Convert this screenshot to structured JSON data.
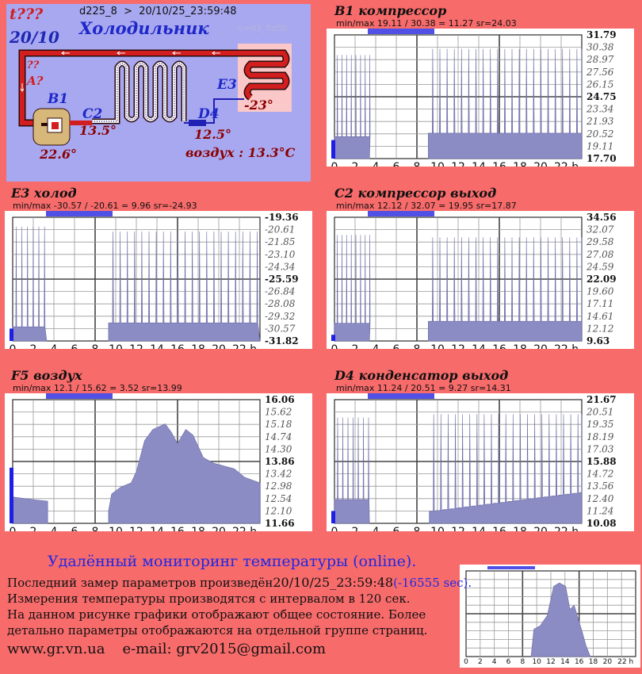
{
  "header": {
    "alarm_top": "t???",
    "date_short": "20/10",
    "device_line": "d225_8  >  20/10/25_23:59:48",
    "version": "v=d3_fig5b",
    "title": "Холодильник"
  },
  "diagram": {
    "question_marks": "??",
    "label_A": "A?",
    "sensors": {
      "B1": {
        "name": "B1",
        "value": "22.6°"
      },
      "C2": {
        "name": "C2",
        "value": "13.5°"
      },
      "D4": {
        "name": "D4",
        "value": "12.5°"
      },
      "E3": {
        "name": "E3",
        "value": "-23°"
      }
    },
    "air": "воздух : 13.3°C"
  },
  "colors": {
    "background": "#f86b6b",
    "diagram_bg": "#a8a8f0",
    "fill": "#8c8cc4",
    "bar": "#5050e6",
    "pipe_hot": "#d21e1e",
    "pipe_cold": "#2020b4"
  },
  "chart_data": [
    {
      "id": "b1",
      "type": "area",
      "title": "B1 компрессор",
      "stats": "min/max  19.11 / 30.38 = 11.27     sr=24.03",
      "yticks": [
        "31.79",
        "30.38",
        "28.97",
        "27.56",
        "26.15",
        "24.75",
        "23.34",
        "21.93",
        "20.52",
        "19.11",
        "17.70"
      ],
      "ylim": [
        17.7,
        31.79
      ],
      "bold_ticks": [
        0,
        5,
        10
      ],
      "x_ticks": [
        "0",
        "2",
        "4",
        "6",
        "8",
        "10",
        "12",
        "14",
        "16",
        "18",
        "20",
        "22 h"
      ],
      "off_segment": [
        3.4,
        9.1
      ],
      "segments": [
        {
          "from": 0,
          "to": 3.4,
          "base": 20.2,
          "peak": 29.5,
          "spike_every": 0.45
        },
        {
          "from": 9.1,
          "to": 24,
          "base": 20.6,
          "peak": 30.2,
          "spike_every": 0.7
        }
      ],
      "indicator_value": 0.15
    },
    {
      "id": "e3",
      "type": "area",
      "title": "E3 холод",
      "stats": "min/max  -30.57 / -20.61 = 9.96     sr=-24.93",
      "yticks": [
        "-19.36",
        "-20.61",
        "-21.85",
        "-23.10",
        "-24.34",
        "-25.59",
        "-26.84",
        "-28.08",
        "-29.32",
        "-30.57",
        "-31.82"
      ],
      "ylim": [
        -31.82,
        -19.36
      ],
      "bold_ticks": [
        0,
        5,
        10
      ],
      "x_ticks": [
        "0",
        "2",
        "4",
        "6",
        "8",
        "10",
        "12",
        "14",
        "16",
        "18",
        "20",
        "22 h"
      ],
      "off_segment": [
        3.3,
        9.3
      ],
      "segments": [
        {
          "from": 0,
          "to": 3.3,
          "base": -30.4,
          "peak": -20.3,
          "spike_every": 0.55
        },
        {
          "from": 9.3,
          "to": 24,
          "base": -30.0,
          "peak": -20.8,
          "spike_every": 0.7
        }
      ],
      "indicator_value": 0.1
    },
    {
      "id": "c2",
      "type": "area",
      "title": "C2 компрессор выход",
      "stats": "min/max  12.12 / 32.07 = 19.95     sr=17.87",
      "yticks": [
        "34.56",
        "32.07",
        "29.58",
        "27.08",
        "24.59",
        "22.09",
        "19.60",
        "17.11",
        "14.61",
        "12.12",
        "9.63"
      ],
      "ylim": [
        9.63,
        34.56
      ],
      "bold_ticks": [
        0,
        5,
        10
      ],
      "x_ticks": [
        "0",
        "2",
        "4",
        "6",
        "8",
        "10",
        "12",
        "14",
        "16",
        "18",
        "20",
        "22 h"
      ],
      "off_segment": [
        3.4,
        9.1
      ],
      "segments": [
        {
          "from": 0,
          "to": 3.4,
          "base": 13.2,
          "peak": 31.0,
          "spike_every": 0.45
        },
        {
          "from": 9.1,
          "to": 24,
          "base": 13.6,
          "peak": 30.5,
          "spike_every": 0.7
        }
      ],
      "indicator_value": 0.05
    },
    {
      "id": "f5",
      "type": "area",
      "title": "F5 воздух",
      "stats": "min/max  12.1 / 15.62 = 3.52      sr=13.99",
      "yticks": [
        "16.06",
        "15.62",
        "15.18",
        "14.74",
        "14.30",
        "13.86",
        "13.42",
        "12.98",
        "12.54",
        "12.10",
        "11.66"
      ],
      "ylim": [
        11.66,
        16.06
      ],
      "bold_ticks": [
        0,
        5,
        10
      ],
      "x_ticks": [
        "0",
        "2",
        "4",
        "6",
        "8",
        "10",
        "12",
        "14",
        "16",
        "18",
        "20",
        "22 h"
      ],
      "off_segment": [
        3.4,
        9.3
      ],
      "smooth": [
        [
          0,
          12.6
        ],
        [
          1,
          12.55
        ],
        [
          2,
          12.5
        ],
        [
          3.4,
          12.45
        ],
        [
          9.3,
          12.1
        ],
        [
          9.6,
          12.7
        ],
        [
          10.5,
          12.95
        ],
        [
          11.5,
          13.1
        ],
        [
          12,
          13.5
        ],
        [
          12.8,
          14.6
        ],
        [
          13.6,
          15.0
        ],
        [
          14.8,
          15.2
        ],
        [
          15.4,
          14.9
        ],
        [
          16,
          14.5
        ],
        [
          16.8,
          15.0
        ],
        [
          17.5,
          14.8
        ],
        [
          18.5,
          14.0
        ],
        [
          19.5,
          13.8
        ],
        [
          20.5,
          13.7
        ],
        [
          21.5,
          13.6
        ],
        [
          22.5,
          13.3
        ],
        [
          24,
          13.1
        ]
      ],
      "indicator_value": 0.45
    },
    {
      "id": "d4",
      "type": "area",
      "title": "D4 конденсатор выход",
      "stats": "min/max  11.24 / 20.51 = 9.27     sr=14.31",
      "yticks": [
        "21.67",
        "20.51",
        "19.35",
        "18.19",
        "17.03",
        "15.88",
        "14.72",
        "13.56",
        "12.40",
        "11.24",
        "10.08"
      ],
      "ylim": [
        10.08,
        21.67
      ],
      "bold_ticks": [
        0,
        5,
        10
      ],
      "x_ticks": [
        "0",
        "2",
        "4",
        "6",
        "8",
        "10",
        "12",
        "14",
        "16",
        "18",
        "20",
        "22 h"
      ],
      "off_segment": [
        3.4,
        9.2
      ],
      "segments": [
        {
          "from": 0,
          "to": 3.4,
          "base": 12.3,
          "peak": 20.0,
          "spike_every": 0.5
        },
        {
          "from": 9.2,
          "to": 24,
          "base": 12.2,
          "peak": 20.3,
          "spike_every": 0.7
        }
      ],
      "base_rise": [
        9.2,
        11.2,
        24,
        13.0
      ],
      "indicator_value": 0.1
    },
    {
      "id": "thumb",
      "type": "area",
      "title": "",
      "stats": "",
      "yticks": [],
      "ylim": [
        0,
        10
      ],
      "bold_ticks": [],
      "x_ticks": [
        "0",
        "2",
        "4",
        "6",
        "8",
        "10",
        "12",
        "14",
        "16",
        "18",
        "20",
        "22 h"
      ],
      "off_segment": [
        0,
        9.2
      ],
      "thumb_shape": [
        [
          9.2,
          0
        ],
        [
          9.6,
          3.2
        ],
        [
          10.5,
          3.6
        ],
        [
          11.5,
          4.8
        ],
        [
          12.4,
          8.2
        ],
        [
          13.2,
          8.6
        ],
        [
          14.1,
          8.2
        ],
        [
          14.7,
          5.5
        ],
        [
          15.3,
          6.0
        ],
        [
          15.8,
          4.6
        ],
        [
          16.4,
          3.0
        ],
        [
          17,
          1.2
        ],
        [
          17.6,
          0
        ]
      ],
      "indicator_value": 0
    }
  ],
  "footer": {
    "title": "Удалённый мониторинг температуры (online).",
    "line1": "Последний замер параметров произведён",
    "line1_time": "20/10/25_23:59:48",
    "line1_delta": "(-16555 sec).",
    "line2": "Измерения температуры  производятся с интервалом в 120 сек.",
    "line3": "На данном рисунке графики отображают общее состояние. Более",
    "line4": "детально параметры отображаются на отдельной группе страниц.",
    "site": "www.gr.vn.ua",
    "email_label": "e-mail:",
    "email": "grv2015@gmail.com"
  }
}
